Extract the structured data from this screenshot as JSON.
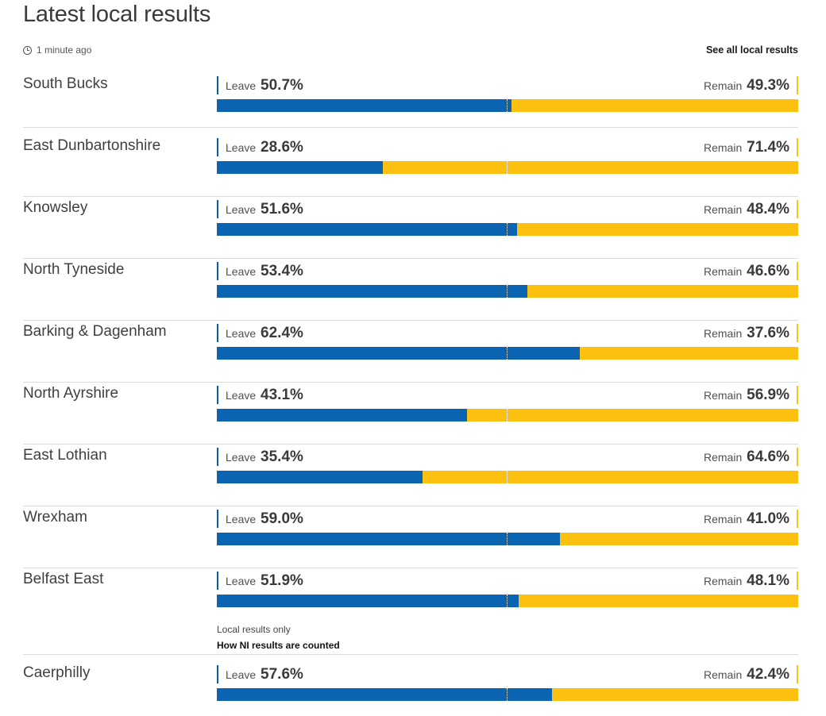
{
  "title": "Latest local results",
  "updated": "1 minute ago",
  "see_all": "See all local results",
  "leave_label": "Leave",
  "remain_label": "Remain",
  "results": [
    {
      "area": "South Bucks",
      "leave": 50.7,
      "remain": 49.3,
      "leave_text": "50.7%",
      "remain_text": "49.3%"
    },
    {
      "area": "East Dunbartonshire",
      "leave": 28.6,
      "remain": 71.4,
      "leave_text": "28.6%",
      "remain_text": "71.4%"
    },
    {
      "area": "Knowsley",
      "leave": 51.6,
      "remain": 48.4,
      "leave_text": "51.6%",
      "remain_text": "48.4%"
    },
    {
      "area": "North Tyneside",
      "leave": 53.4,
      "remain": 46.6,
      "leave_text": "53.4%",
      "remain_text": "46.6%"
    },
    {
      "area": "Barking & Dagenham",
      "leave": 62.4,
      "remain": 37.6,
      "leave_text": "62.4%",
      "remain_text": "37.6%"
    },
    {
      "area": "North Ayrshire",
      "leave": 43.1,
      "remain": 56.9,
      "leave_text": "43.1%",
      "remain_text": "56.9%"
    },
    {
      "area": "East Lothian",
      "leave": 35.4,
      "remain": 64.6,
      "leave_text": "35.4%",
      "remain_text": "64.6%"
    },
    {
      "area": "Wrexham",
      "leave": 59.0,
      "remain": 41.0,
      "leave_text": "59.0%",
      "remain_text": "41.0%"
    },
    {
      "area": "Belfast East",
      "leave": 51.9,
      "remain": 48.1,
      "leave_text": "51.9%",
      "remain_text": "48.1%",
      "note": "Local results only",
      "note_link": "How NI results are counted"
    },
    {
      "area": "Caerphilly",
      "leave": 57.6,
      "remain": 42.4,
      "leave_text": "57.6%",
      "remain_text": "42.4%"
    }
  ],
  "colors": {
    "leave": "#0a64b2",
    "remain": "#fcc010"
  }
}
